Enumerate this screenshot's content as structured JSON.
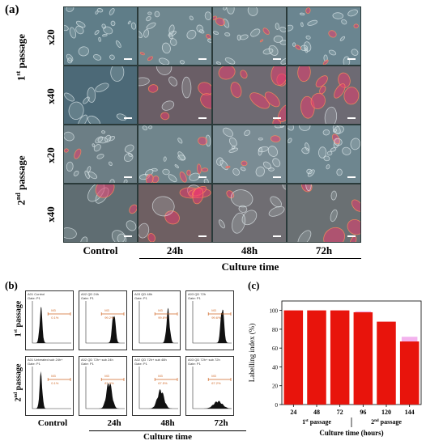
{
  "panel_a": {
    "letter": "(a)",
    "passage1": {
      "label_main": "1",
      "label_sup": "st",
      "label_rest": " passage"
    },
    "passage2": {
      "label_main": "2",
      "label_sup": "nd",
      "label_rest": " passage"
    },
    "magnifications": [
      "x20",
      "x40",
      "x20",
      "x40"
    ],
    "columns": [
      "Control",
      "24h",
      "48h",
      "72h"
    ],
    "axis_label": "Culture time"
  },
  "panel_b": {
    "letter": "(b)",
    "passage1": {
      "label_main": "1",
      "label_sup": "st",
      "label_rest": " passage"
    },
    "passage2": {
      "label_main": "2",
      "label_sup": "nd",
      "label_rest": " passage"
    },
    "columns": [
      "Control",
      "24h",
      "48h",
      "72h"
    ],
    "axis_label": "Culture time",
    "histograms": [
      {
        "title": "A01 Control\nGate: P1",
        "gate": "M3",
        "pct": "0.1%"
      },
      {
        "title": "A02 QD 24h\nGate: P1",
        "gate": "M3",
        "pct": "99.2%"
      },
      {
        "title": "A03 QD 48h\nGate: P1",
        "gate": "M3",
        "pct": "99.8%"
      },
      {
        "title": "A03 QD 72h\nGate: P1",
        "gate": "M3",
        "pct": "99.6%"
      },
      {
        "title": "A01 Untreated sub 24h+\nGate: P1",
        "gate": "M3",
        "pct": "0.1%"
      },
      {
        "title": "A02 QD 72h+ sub 24h\nGate: P1",
        "gate": "M3",
        "pct": "87.9%"
      },
      {
        "title": "A02 QD 72h+ sub 48h\nGate: P1",
        "gate": "M3",
        "pct": "67.5%"
      },
      {
        "title": "A03 QD 72h+ sub 72h\nGate: P1",
        "gate": "M3",
        "pct": "67.2%"
      }
    ]
  },
  "panel_c": {
    "letter": "(c)",
    "group1": {
      "label_main": "1",
      "label_sup": "st",
      "label_rest": " passage"
    },
    "group2": {
      "label_main": "2",
      "label_sup": "nd",
      "label_rest": " passage"
    }
  },
  "chart_data": {
    "type": "bar",
    "categories": [
      "24",
      "48",
      "72",
      "96",
      "120",
      "144"
    ],
    "values": [
      100,
      100,
      100,
      98,
      88,
      67
    ],
    "error_tops": [
      100,
      100,
      100,
      99,
      88,
      72
    ],
    "xlabel": "Culture time (hours)",
    "ylabel": "Labelling index (%)",
    "ylim": [
      0,
      110
    ],
    "yticks": [
      0,
      20,
      40,
      60,
      80,
      100
    ],
    "bar_color": "#e8140c",
    "error_color": "#f3b3ee",
    "grid": false
  }
}
